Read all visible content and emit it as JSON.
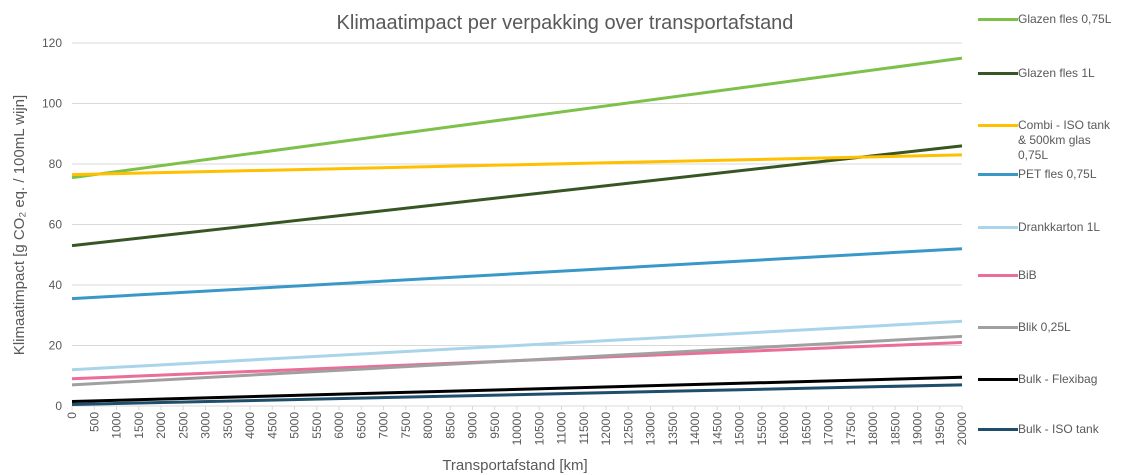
{
  "chart_data": {
    "type": "line",
    "title": "Klimaatimpact per verpakking over transportafstand",
    "x_label": "Transportafstand [km]",
    "y_label": "Klimaatimpact [g CO₂ eq. / 100mL wijn]",
    "x": [
      0,
      20000
    ],
    "xlim": [
      0,
      20000
    ],
    "xticks": [
      0,
      500,
      1000,
      1500,
      2000,
      2500,
      3000,
      3500,
      4000,
      4500,
      5000,
      5500,
      6000,
      6500,
      7000,
      7500,
      8000,
      8500,
      9000,
      9500,
      10000,
      10500,
      11000,
      11500,
      12000,
      12500,
      13000,
      13500,
      14000,
      14500,
      15000,
      15500,
      16000,
      16500,
      17000,
      17500,
      18000,
      18500,
      19000,
      19500,
      20000
    ],
    "ylim": [
      0,
      120
    ],
    "yticks": [
      0,
      20,
      40,
      60,
      80,
      100,
      120
    ],
    "grid": true,
    "legend": "right",
    "series": [
      {
        "name": "Glazen fles 0,75L",
        "color": "#7dc14a",
        "values": [
          75.5,
          115
        ]
      },
      {
        "name": "Glazen fles 1L",
        "color": "#375623",
        "values": [
          53,
          86
        ]
      },
      {
        "name": "Combi - ISO tank & 500km glas 0,75L",
        "color": "#ffc000",
        "values": [
          76.5,
          83
        ]
      },
      {
        "name": "PET fles 0,75L",
        "color": "#3a98c9",
        "values": [
          35.5,
          52
        ]
      },
      {
        "name": "Drankkarton 1L",
        "color": "#a9d4ea",
        "values": [
          12,
          28
        ]
      },
      {
        "name": "BiB",
        "color": "#ec6c9a",
        "values": [
          9,
          21
        ]
      },
      {
        "name": "Blik 0,25L",
        "color": "#a0a0a0",
        "values": [
          7,
          23
        ]
      },
      {
        "name": "Bulk - Flexibag",
        "color": "#000000",
        "values": [
          1.5,
          9.5
        ]
      },
      {
        "name": "Bulk - ISO tank",
        "color": "#1f4e6b",
        "values": [
          0.5,
          7
        ]
      }
    ]
  }
}
